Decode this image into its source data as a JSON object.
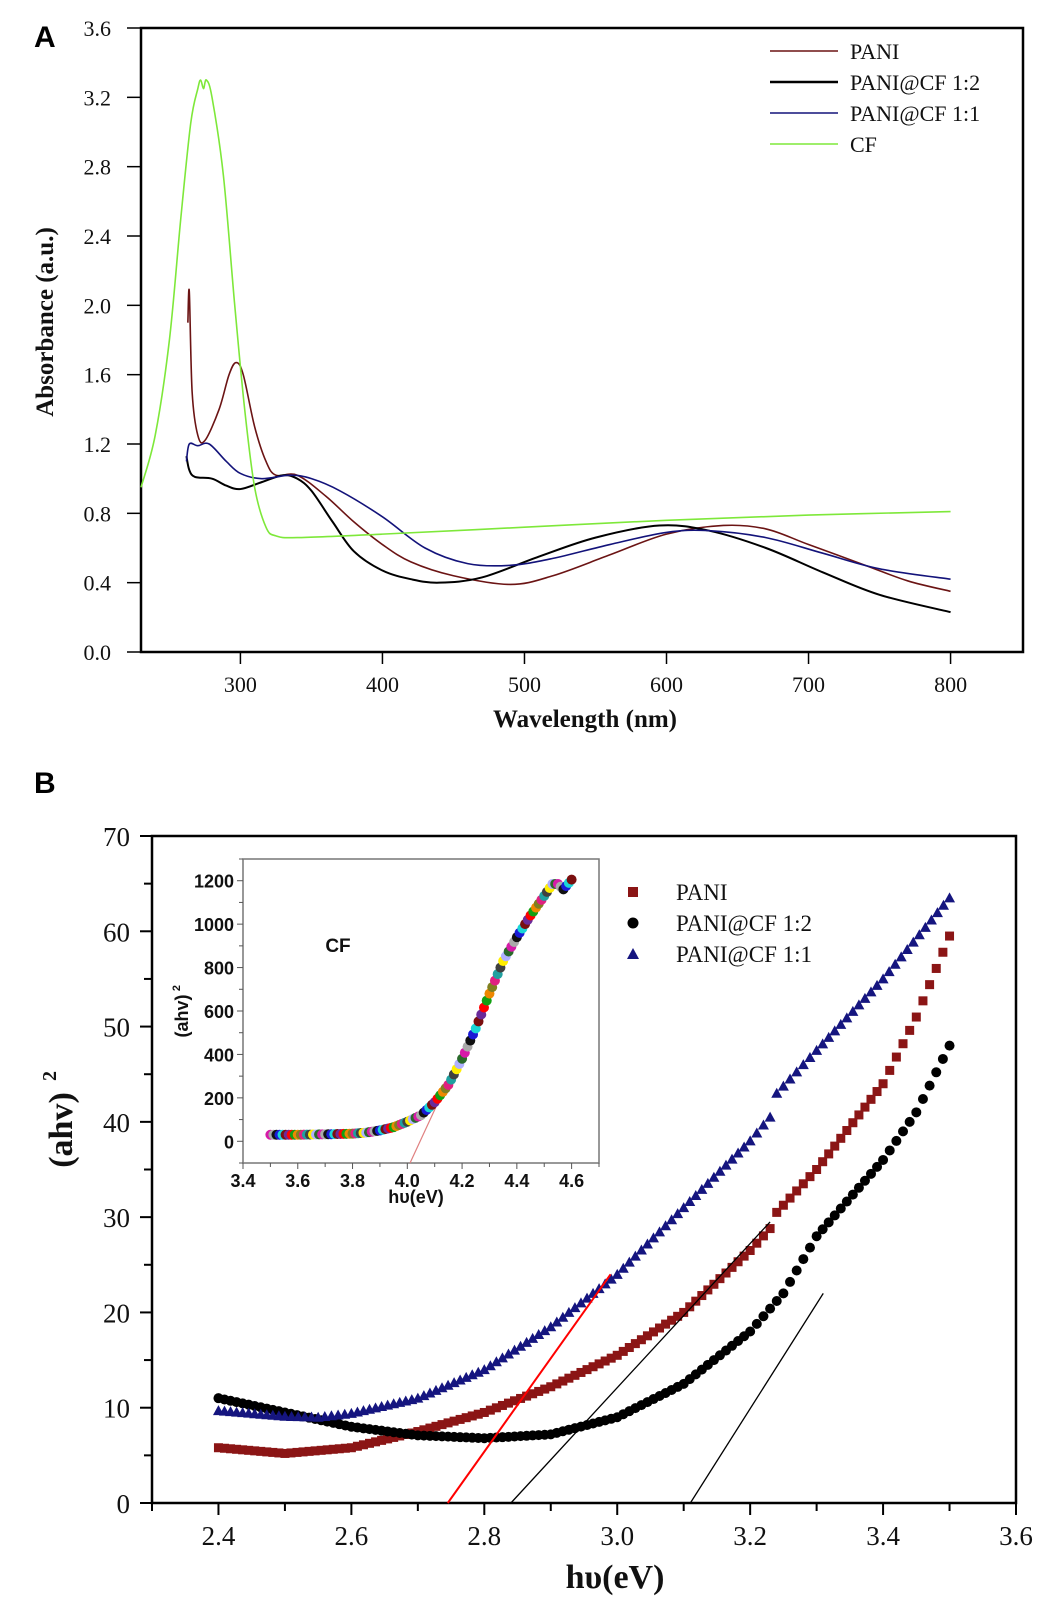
{
  "chart_data": [
    {
      "panel_label": "A",
      "type": "line",
      "title": "",
      "xlabel": "Wavelength (nm)",
      "ylabel": "Absorbance (a.u.)",
      "xlim": [
        230,
        851
      ],
      "ylim": [
        0,
        3.6
      ],
      "xticks": [
        300,
        400,
        500,
        600,
        700,
        800
      ],
      "yticks": [
        "0.0",
        "0.4",
        "0.8",
        "1.2",
        "1.6",
        "2.0",
        "2.4",
        "2.8",
        "3.2",
        "3.6"
      ],
      "grid": false,
      "legend_position": "top-right",
      "series": [
        {
          "name": "PANI",
          "color": "#6b1414",
          "points": [
            [
              263,
              1.9
            ],
            [
              264,
              2.08
            ],
            [
              266,
              1.5
            ],
            [
              270,
              1.25
            ],
            [
              275,
              1.22
            ],
            [
              285,
              1.4
            ],
            [
              292,
              1.6
            ],
            [
              297,
              1.67
            ],
            [
              302,
              1.6
            ],
            [
              310,
              1.3
            ],
            [
              318,
              1.1
            ],
            [
              325,
              1.02
            ],
            [
              340,
              1.02
            ],
            [
              360,
              0.9
            ],
            [
              380,
              0.75
            ],
            [
              400,
              0.62
            ],
            [
              420,
              0.52
            ],
            [
              450,
              0.44
            ],
            [
              490,
              0.39
            ],
            [
              520,
              0.44
            ],
            [
              560,
              0.56
            ],
            [
              600,
              0.68
            ],
            [
              640,
              0.73
            ],
            [
              670,
              0.71
            ],
            [
              700,
              0.62
            ],
            [
              740,
              0.5
            ],
            [
              770,
              0.41
            ],
            [
              800,
              0.35
            ]
          ]
        },
        {
          "name": "PANI@CF 1:2",
          "color": "#000000",
          "points": [
            [
              262,
              1.13
            ],
            [
              264,
              1.05
            ],
            [
              268,
              1.01
            ],
            [
              280,
              1.0
            ],
            [
              290,
              0.96
            ],
            [
              300,
              0.94
            ],
            [
              315,
              0.98
            ],
            [
              330,
              1.02
            ],
            [
              340,
              1.0
            ],
            [
              350,
              0.93
            ],
            [
              365,
              0.75
            ],
            [
              380,
              0.58
            ],
            [
              400,
              0.47
            ],
            [
              420,
              0.42
            ],
            [
              440,
              0.4
            ],
            [
              470,
              0.43
            ],
            [
              510,
              0.55
            ],
            [
              550,
              0.66
            ],
            [
              595,
              0.73
            ],
            [
              630,
              0.7
            ],
            [
              670,
              0.6
            ],
            [
              710,
              0.46
            ],
            [
              750,
              0.33
            ],
            [
              800,
              0.23
            ]
          ]
        },
        {
          "name": "PANI@CF 1:1",
          "color": "#13137a",
          "points": [
            [
              262,
              1.1
            ],
            [
              264,
              1.2
            ],
            [
              270,
              1.19
            ],
            [
              278,
              1.2
            ],
            [
              290,
              1.1
            ],
            [
              300,
              1.03
            ],
            [
              315,
              1.0
            ],
            [
              335,
              1.02
            ],
            [
              350,
              1.0
            ],
            [
              370,
              0.93
            ],
            [
              400,
              0.78
            ],
            [
              430,
              0.6
            ],
            [
              460,
              0.51
            ],
            [
              490,
              0.5
            ],
            [
              520,
              0.54
            ],
            [
              560,
              0.62
            ],
            [
              600,
              0.69
            ],
            [
              630,
              0.7
            ],
            [
              670,
              0.66
            ],
            [
              710,
              0.57
            ],
            [
              750,
              0.48
            ],
            [
              800,
              0.42
            ]
          ]
        },
        {
          "name": "CF",
          "color": "#7ee83a",
          "points": [
            [
              230,
              0.95
            ],
            [
              240,
              1.25
            ],
            [
              250,
              1.8
            ],
            [
              258,
              2.5
            ],
            [
              265,
              3.05
            ],
            [
              270,
              3.25
            ],
            [
              272,
              3.3
            ],
            [
              274,
              3.25
            ],
            [
              276,
              3.3
            ],
            [
              280,
              3.2
            ],
            [
              288,
              2.75
            ],
            [
              296,
              2.0
            ],
            [
              303,
              1.4
            ],
            [
              310,
              0.95
            ],
            [
              318,
              0.72
            ],
            [
              325,
              0.67
            ],
            [
              340,
              0.66
            ],
            [
              400,
              0.68
            ],
            [
              500,
              0.72
            ],
            [
              600,
              0.76
            ],
            [
              700,
              0.79
            ],
            [
              800,
              0.81
            ]
          ]
        }
      ]
    },
    {
      "panel_label": "B",
      "type": "scatter",
      "title": "",
      "xlabel": "hυ(eV)",
      "ylabel": "(ahv)",
      "ylabel_superscript": "2",
      "xlim": [
        2.3,
        3.6
      ],
      "ylim": [
        0,
        70
      ],
      "xticks": [
        "2.4",
        "2.6",
        "2.8",
        "3.0",
        "3.2",
        "3.4",
        "3.6"
      ],
      "yticks": [
        "0",
        "10",
        "20",
        "30",
        "40",
        "50",
        "60",
        "70"
      ],
      "grid": false,
      "legend_position": "top-right",
      "series": [
        {
          "name": "PANI",
          "marker": "square",
          "color": "#8b1515",
          "points": [
            [
              2.4,
              5.8
            ],
            [
              2.5,
              5.2
            ],
            [
              2.6,
              5.8
            ],
            [
              2.7,
              7.5
            ],
            [
              2.8,
              9.5
            ],
            [
              2.9,
              12.2
            ],
            [
              3.0,
              15.5
            ],
            [
              3.1,
              20
            ],
            [
              3.2,
              26.5
            ],
            [
              3.23,
              28.8
            ],
            [
              3.24,
              30.5
            ],
            [
              3.3,
              35
            ],
            [
              3.4,
              44
            ],
            [
              3.45,
              51
            ],
            [
              3.5,
              59.5
            ]
          ]
        },
        {
          "name": "PANI@CF 1:2",
          "marker": "circle",
          "color": "#000000",
          "points": [
            [
              2.4,
              11
            ],
            [
              2.5,
              9.5
            ],
            [
              2.6,
              8
            ],
            [
              2.7,
              7.1
            ],
            [
              2.8,
              6.8
            ],
            [
              2.9,
              7.2
            ],
            [
              3.0,
              9
            ],
            [
              3.1,
              12.5
            ],
            [
              3.2,
              18
            ],
            [
              3.25,
              22
            ],
            [
              3.3,
              28
            ],
            [
              3.4,
              36
            ],
            [
              3.45,
              41
            ],
            [
              3.5,
              48
            ]
          ]
        },
        {
          "name": "PANI@CF 1:1",
          "marker": "triangle",
          "color": "#15157f",
          "points": [
            [
              2.4,
              9.7
            ],
            [
              2.5,
              9.1
            ],
            [
              2.55,
              9.0
            ],
            [
              2.6,
              9.4
            ],
            [
              2.7,
              11
            ],
            [
              2.8,
              14
            ],
            [
              2.9,
              18.5
            ],
            [
              3.0,
              24
            ],
            [
              3.1,
              31
            ],
            [
              3.2,
              38
            ],
            [
              3.23,
              40.5
            ],
            [
              3.24,
              43
            ],
            [
              3.3,
              47.5
            ],
            [
              3.4,
              55
            ],
            [
              3.5,
              63.5
            ]
          ]
        }
      ],
      "fit_lines": [
        {
          "color": "#ff0000",
          "points": [
            [
              2.745,
              0
            ],
            [
              2.99,
              24
            ]
          ]
        },
        {
          "color": "#000000",
          "points": [
            [
              2.84,
              0
            ],
            [
              3.23,
              29.5
            ]
          ]
        },
        {
          "color": "#000000",
          "points": [
            [
              3.11,
              0
            ],
            [
              3.31,
              22
            ]
          ]
        }
      ],
      "inset": {
        "label": "CF",
        "type": "scatter",
        "xlabel": "hυ(eV)",
        "ylabel": "(ahv)",
        "ylabel_superscript": "2",
        "xlim": [
          3.4,
          4.7
        ],
        "ylim": [
          -100,
          1300
        ],
        "xticks": [
          "3.4",
          "3.6",
          "3.8",
          "4.0",
          "4.2",
          "4.4",
          "4.6"
        ],
        "yticks": [
          "0",
          "200",
          "400",
          "600",
          "800",
          "1000",
          "1200"
        ],
        "points": [
          [
            3.5,
            30
          ],
          [
            3.6,
            30
          ],
          [
            3.7,
            32
          ],
          [
            3.8,
            35
          ],
          [
            3.85,
            40
          ],
          [
            3.9,
            50
          ],
          [
            3.95,
            65
          ],
          [
            4.0,
            90
          ],
          [
            4.05,
            120
          ],
          [
            4.1,
            180
          ],
          [
            4.15,
            260
          ],
          [
            4.2,
            380
          ],
          [
            4.25,
            520
          ],
          [
            4.3,
            680
          ],
          [
            4.35,
            830
          ],
          [
            4.4,
            940
          ],
          [
            4.43,
            1000
          ],
          [
            4.45,
            1040
          ],
          [
            4.5,
            1130
          ],
          [
            4.53,
            1185
          ],
          [
            4.55,
            1185
          ],
          [
            4.57,
            1160
          ],
          [
            4.6,
            1205
          ]
        ],
        "fit_line": {
          "color": "#e08080",
          "points": [
            [
              4.01,
              -100
            ],
            [
              4.12,
              200
            ]
          ]
        }
      }
    }
  ]
}
